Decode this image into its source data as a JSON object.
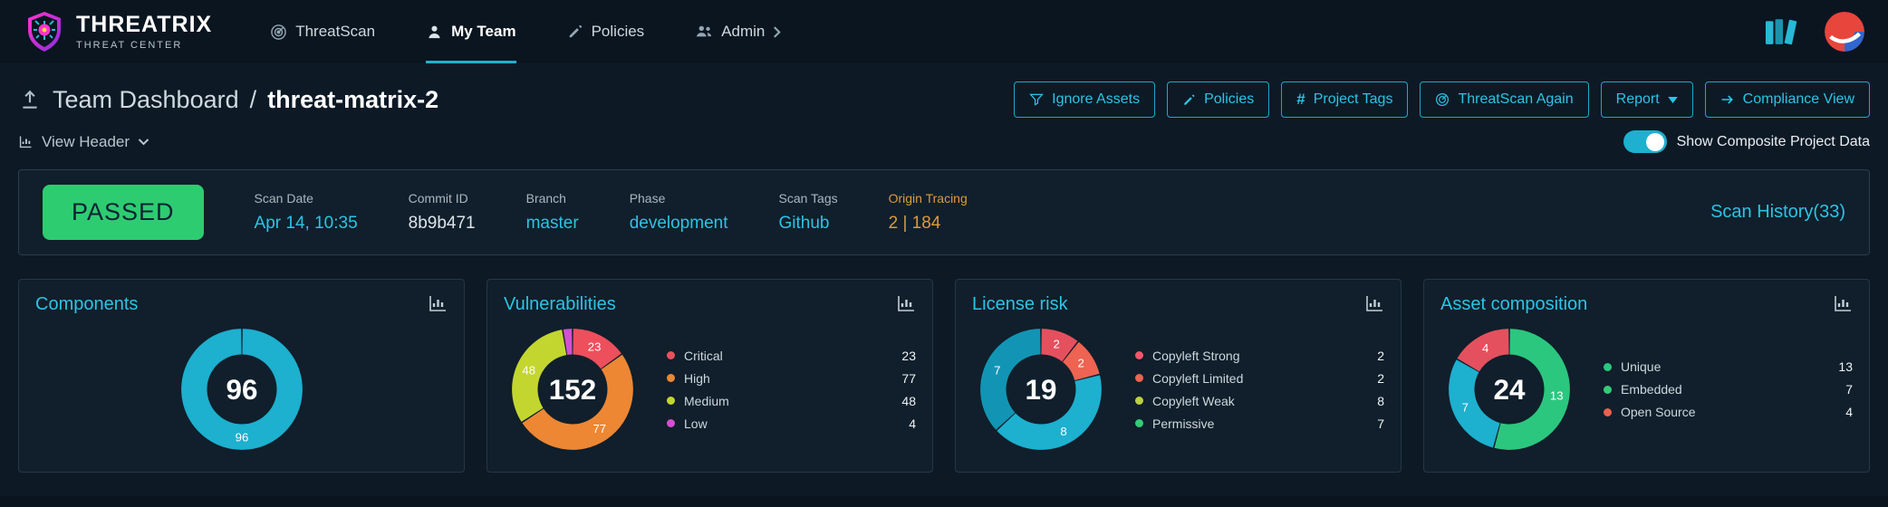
{
  "brand": {
    "name": "THREATRIX",
    "subtitle": "THREAT CENTER"
  },
  "nav": {
    "items": [
      {
        "label": "ThreatScan",
        "icon": "radar-icon",
        "active": false
      },
      {
        "label": "My Team",
        "icon": "person-icon",
        "active": true
      },
      {
        "label": "Policies",
        "icon": "pencil-icon",
        "active": false
      },
      {
        "label": "Admin",
        "icon": "users-icon",
        "active": false,
        "chevron": true
      }
    ]
  },
  "header": {
    "breadcrumb": {
      "section": "Team Dashboard",
      "separator": "/",
      "project": "threat-matrix-2"
    },
    "buttons": [
      {
        "label": "Ignore Assets",
        "icon": "filter-icon"
      },
      {
        "label": "Policies",
        "icon": "pencil-icon"
      },
      {
        "label": "Project Tags",
        "icon": "hash-icon"
      },
      {
        "label": "ThreatScan Again",
        "icon": "radar-icon"
      },
      {
        "label": "Report",
        "icon": "caret-down-icon"
      },
      {
        "label": "Compliance View",
        "icon": "arrow-right-icon"
      }
    ],
    "view_header_label": "View Header",
    "toggle_label": "Show Composite Project Data",
    "toggle_on": true,
    "accent_color": "#1db0cf"
  },
  "scanbar": {
    "status": "PASSED",
    "status_color": "#2ecc71",
    "fields": [
      {
        "label": "Scan Date",
        "value": "Apr 14, 10:35",
        "value_color": "#2cc4e4"
      },
      {
        "label": "Commit ID",
        "value": "8b9b471",
        "value_color": "#dde4e9"
      },
      {
        "label": "Branch",
        "value": "master",
        "value_color": "#2cc4e4"
      },
      {
        "label": "Phase",
        "value": "development",
        "value_color": "#2cc4e4"
      },
      {
        "label": "Scan Tags",
        "value": "Github",
        "value_color": "#2cc4e4"
      },
      {
        "label": "Origin Tracing",
        "value": "2 | 184",
        "label_color": "#dd9a3e",
        "value_color": "#dd9a3e"
      }
    ],
    "history_link": "Scan History(33)"
  },
  "chart_data": [
    {
      "type": "pie",
      "title": "Components",
      "total": 96,
      "center_label": "96",
      "legend_position": "none",
      "segments": [
        {
          "label": "Components",
          "value": 96,
          "color": "#1db0cf"
        }
      ]
    },
    {
      "type": "pie",
      "title": "Vulnerabilities",
      "total": 152,
      "center_label": "152",
      "legend_position": "right",
      "segments": [
        {
          "label": "Critical",
          "value": 23,
          "color": "#ee4f5c"
        },
        {
          "label": "High",
          "value": 77,
          "color": "#ed8733"
        },
        {
          "label": "Medium",
          "value": 48,
          "color": "#c3d62f"
        },
        {
          "label": "Low",
          "value": 4,
          "color": "#d44fd1"
        }
      ]
    },
    {
      "type": "pie",
      "title": "License risk",
      "total": 19,
      "center_label": "19",
      "legend_position": "right",
      "segments": [
        {
          "label": "Copyleft Strong",
          "value": 2,
          "color": "#e5505e",
          "legend_color": "#f2566c"
        },
        {
          "label": "Copyleft Limited",
          "value": 2,
          "color": "#ee6352",
          "legend_color": "#ee6352"
        },
        {
          "label": "Copyleft Weak",
          "value": 8,
          "color": "#1db0cf",
          "legend_color": "#bcd143"
        },
        {
          "label": "Permissive",
          "value": 7,
          "color": "#1295b4",
          "legend_color": "#33cc7a"
        }
      ]
    },
    {
      "type": "pie",
      "title": "Asset composition",
      "total": 24,
      "center_label": "24",
      "legend_position": "right",
      "segments": [
        {
          "label": "Unique",
          "value": 13,
          "color": "#2bc77e",
          "legend_color": "#2bc77e"
        },
        {
          "label": "Embedded",
          "value": 7,
          "color": "#1db0cf",
          "legend_color": "#33cc7a"
        },
        {
          "label": "Open Source",
          "value": 4,
          "color": "#e5505e",
          "legend_color": "#ee5f4e"
        }
      ]
    }
  ]
}
